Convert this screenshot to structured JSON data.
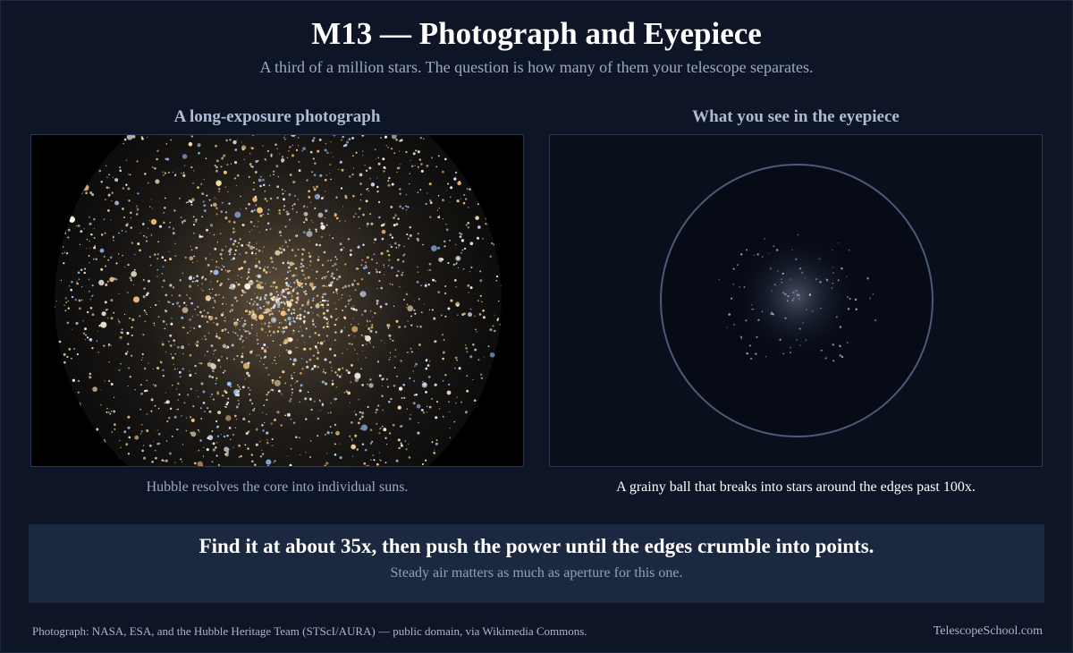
{
  "header": {
    "title": "M13 — Photograph and Eyepiece",
    "subtitle": "A third of a million stars. The question is how many of them your telescope separates."
  },
  "panels": [
    {
      "heading": "A long-exposure photograph",
      "caption": "Hubble resolves the core into individual suns."
    },
    {
      "heading": "What you see in the eyepiece",
      "caption": "A grainy ball that breaks into stars around the edges past 100x."
    }
  ],
  "callout": {
    "headline": "Find it at about 35x, then push the power until the edges crumble into points.",
    "note": "Steady air matters as much as aperture for this one."
  },
  "footer": {
    "credit": "Photograph: NASA, ESA, and the Hubble Heritage Team (STScI/AURA) — public domain, via Wikimedia Commons.",
    "site": "TelescopeSchool.com"
  }
}
